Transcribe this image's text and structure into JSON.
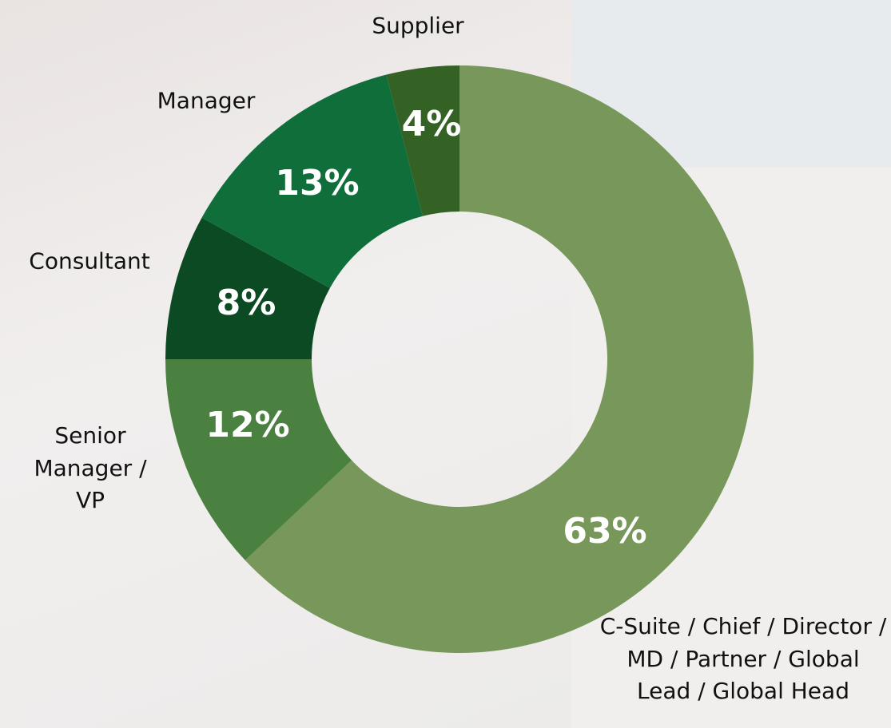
{
  "chart_data": {
    "type": "donut",
    "categories": [
      "C-Suite / Chief / Director / MD / Partner / Global Lead / Global Head",
      "Senior Manager / VP",
      "Consultant",
      "Manager",
      "Supplier"
    ],
    "values": [
      63,
      12,
      8,
      13,
      4
    ],
    "value_labels": [
      "63%",
      "12%",
      "8%",
      "13%",
      "4%"
    ],
    "colors": [
      "#77985a",
      "#4a8040",
      "#0b4a23",
      "#0f6e3a",
      "#346224"
    ]
  }
}
